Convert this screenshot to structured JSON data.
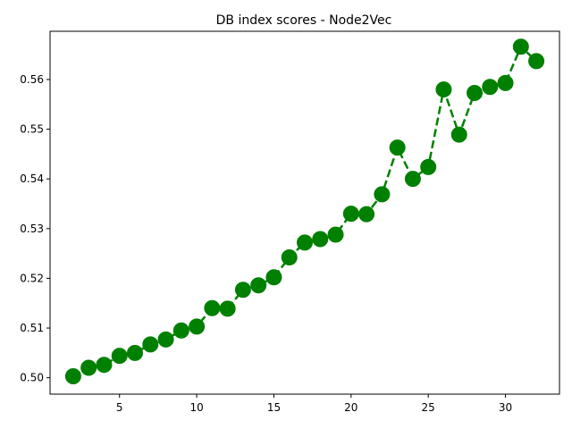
{
  "chart_data": {
    "type": "line",
    "title": "DB index scores - Node2Vec",
    "xlabel": "",
    "ylabel": "",
    "xlim": [
      0.5,
      33.5
    ],
    "ylim": [
      0.4967,
      0.5697
    ],
    "xticks": [
      5,
      10,
      15,
      20,
      25,
      30
    ],
    "yticks": [
      0.5,
      0.51,
      0.52,
      0.53,
      0.54,
      0.55,
      0.56
    ],
    "ytick_labels": [
      "0.50",
      "0.51",
      "0.52",
      "0.53",
      "0.54",
      "0.55",
      "0.56"
    ],
    "grid": false,
    "series": [
      {
        "color": "#008000",
        "line_style": "dashed",
        "marker": "circle",
        "x": [
          2,
          3,
          4,
          5,
          6,
          7,
          8,
          9,
          10,
          11,
          12,
          13,
          14,
          15,
          16,
          17,
          18,
          19,
          20,
          21,
          22,
          23,
          24,
          25,
          26,
          27,
          28,
          29,
          30,
          31,
          32
        ],
        "y": [
          0.5003,
          0.502,
          0.5026,
          0.5044,
          0.505,
          0.5067,
          0.5077,
          0.5095,
          0.5103,
          0.514,
          0.5139,
          0.5177,
          0.5186,
          0.5202,
          0.5242,
          0.5272,
          0.5279,
          0.5288,
          0.533,
          0.5329,
          0.5369,
          0.5463,
          0.54,
          0.5424,
          0.558,
          0.5489,
          0.5573,
          0.5585,
          0.5593,
          0.5666,
          0.5637
        ]
      }
    ]
  }
}
